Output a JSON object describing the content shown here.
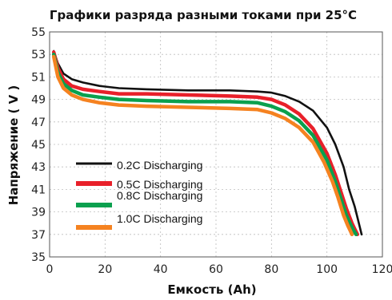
{
  "chart_data": {
    "type": "line",
    "title": "Графики разряда разными токами при 25°C",
    "xlabel": "Емкость (Ah)",
    "ylabel": "Напряжение ( V )",
    "xlim": [
      0,
      120
    ],
    "ylim": [
      35,
      55
    ],
    "xticks": [
      0,
      20,
      40,
      60,
      80,
      100,
      120
    ],
    "yticks": [
      35,
      37,
      39,
      41,
      43,
      45,
      47,
      49,
      51,
      53,
      55
    ],
    "grid": true,
    "legend": "left-middle",
    "series": [
      {
        "name": "0.2C Discharging",
        "color": "#111111",
        "x": [
          1.5,
          3,
          5,
          8,
          12,
          18,
          25,
          35,
          50,
          65,
          75,
          80,
          85,
          90,
          95,
          100,
          103,
          106,
          108,
          110,
          111,
          112,
          112.5
        ],
        "y": [
          53.3,
          52.2,
          51.3,
          50.8,
          50.5,
          50.2,
          50.0,
          49.9,
          49.8,
          49.8,
          49.7,
          49.6,
          49.3,
          48.8,
          48.0,
          46.5,
          45.0,
          43.0,
          41.0,
          39.5,
          38.5,
          37.5,
          37.0
        ]
      },
      {
        "name": "0.5C Discharging",
        "color": "#e8202a",
        "x": [
          1.5,
          3,
          5,
          8,
          12,
          18,
          25,
          35,
          50,
          65,
          75,
          80,
          85,
          90,
          95,
          100,
          103,
          105,
          107,
          109,
          110,
          111
        ],
        "y": [
          53.2,
          51.8,
          50.8,
          50.2,
          49.9,
          49.7,
          49.5,
          49.5,
          49.4,
          49.3,
          49.2,
          49.0,
          48.5,
          47.7,
          46.4,
          44.2,
          42.3,
          40.8,
          39.3,
          38.0,
          37.5,
          37.0
        ]
      },
      {
        "name": "0.8C Discharging",
        "color": "#0aa04e",
        "x": [
          1.5,
          3,
          5,
          8,
          12,
          18,
          25,
          35,
          50,
          65,
          75,
          80,
          85,
          90,
          95,
          100,
          103,
          105,
          107,
          108.5,
          109.5,
          110.5
        ],
        "y": [
          53.0,
          51.4,
          50.4,
          49.8,
          49.4,
          49.2,
          49.0,
          48.9,
          48.8,
          48.8,
          48.7,
          48.4,
          47.9,
          47.1,
          45.8,
          43.6,
          41.7,
          40.2,
          38.7,
          37.9,
          37.4,
          37.0
        ]
      },
      {
        "name": "1.0C Discharging",
        "color": "#f58220",
        "x": [
          1.5,
          3,
          5,
          8,
          12,
          18,
          25,
          35,
          50,
          65,
          75,
          80,
          85,
          90,
          95,
          99,
          102,
          104,
          106,
          107.5,
          108.5,
          109
        ],
        "y": [
          52.8,
          51.0,
          50.0,
          49.4,
          49.0,
          48.7,
          48.5,
          48.4,
          48.3,
          48.2,
          48.1,
          47.8,
          47.3,
          46.5,
          45.2,
          43.4,
          41.7,
          40.3,
          38.7,
          37.8,
          37.3,
          37.0
        ]
      }
    ]
  }
}
